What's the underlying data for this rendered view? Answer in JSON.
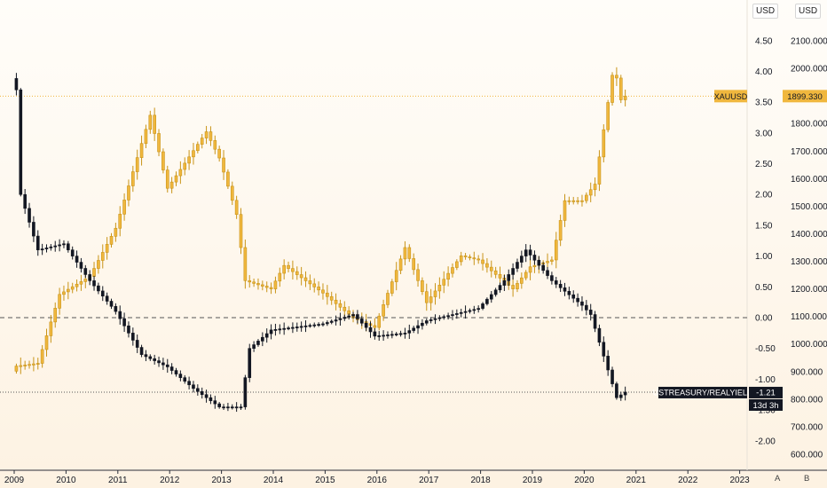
{
  "chart_data": {
    "type": "candlestick",
    "title": "",
    "x_axis": {
      "tick_labels": [
        "2009",
        "2010",
        "2011",
        "2012",
        "2013",
        "2014",
        "2015",
        "2016",
        "2017",
        "2018",
        "2019",
        "2020",
        "2021",
        "2022",
        "2023"
      ]
    },
    "left_price_scale": {
      "unit": "USD",
      "tick_labels": [
        "4.50",
        "4.00",
        "3.50",
        "3.00",
        "2.50",
        "2.00",
        "1.50",
        "1.00",
        "0.50",
        "0.00",
        "-0.50",
        "-1.00",
        "-1.50",
        "-2.00"
      ],
      "range": [
        -2.3,
        4.85
      ]
    },
    "right_price_scale": {
      "unit": "USD",
      "tick_labels": [
        "2100.000",
        "2000.000",
        "1900.000",
        "1800.000",
        "1700.000",
        "1600.000",
        "1500.000",
        "1400.000",
        "1300.000",
        "1200.000",
        "1100.000",
        "1000.000",
        "900.000",
        "800.000",
        "700.000",
        "600.000"
      ],
      "range": [
        550,
        2215
      ]
    },
    "series": [
      {
        "name": "XAUUSD",
        "color": "#f0b73e",
        "last_label": "1899.330",
        "monthly_close_anchors": [
          [
            "2009-01",
            920
          ],
          [
            "2009-06",
            930
          ],
          [
            "2009-11",
            1180
          ],
          [
            "2010-06",
            1245
          ],
          [
            "2010-12",
            1420
          ],
          [
            "2011-08",
            1830
          ],
          [
            "2011-12",
            1565
          ],
          [
            "2012-09",
            1770
          ],
          [
            "2012-12",
            1675
          ],
          [
            "2013-04",
            1470
          ],
          [
            "2013-06",
            1230
          ],
          [
            "2013-12",
            1200
          ],
          [
            "2014-03",
            1285
          ],
          [
            "2014-12",
            1185
          ],
          [
            "2015-07",
            1095
          ],
          [
            "2015-12",
            1060
          ],
          [
            "2016-07",
            1350
          ],
          [
            "2016-12",
            1150
          ],
          [
            "2017-08",
            1320
          ],
          [
            "2017-12",
            1305
          ],
          [
            "2018-08",
            1200
          ],
          [
            "2018-12",
            1280
          ],
          [
            "2019-05",
            1305
          ],
          [
            "2019-08",
            1520
          ],
          [
            "2019-12",
            1520
          ],
          [
            "2020-03",
            1580
          ],
          [
            "2020-07",
            1975
          ],
          [
            "2020-08",
            1965
          ],
          [
            "2020-09",
            1886
          ],
          [
            "2020-10",
            1899
          ]
        ]
      },
      {
        "name": "USTREASURY/REALYIELD",
        "color": "#131722",
        "last_label": "-1.21",
        "countdown": "13d 3h",
        "monthly_close_anchors": [
          [
            "2009-01",
            3.7
          ],
          [
            "2009-02",
            2.0
          ],
          [
            "2009-06",
            1.1
          ],
          [
            "2009-12",
            1.2
          ],
          [
            "2010-06",
            0.6
          ],
          [
            "2010-12",
            0.1
          ],
          [
            "2011-06",
            -0.6
          ],
          [
            "2011-12",
            -0.8
          ],
          [
            "2012-06",
            -1.15
          ],
          [
            "2012-12",
            -1.45
          ],
          [
            "2013-05",
            -1.45
          ],
          [
            "2013-07",
            -0.5
          ],
          [
            "2013-12",
            -0.2
          ],
          [
            "2014-12",
            -0.1
          ],
          [
            "2015-07",
            0.05
          ],
          [
            "2015-12",
            -0.3
          ],
          [
            "2016-07",
            -0.25
          ],
          [
            "2016-12",
            -0.05
          ],
          [
            "2017-12",
            0.15
          ],
          [
            "2018-06",
            0.6
          ],
          [
            "2018-11",
            1.1
          ],
          [
            "2019-05",
            0.6
          ],
          [
            "2019-12",
            0.2
          ],
          [
            "2020-02",
            0.05
          ],
          [
            "2020-04",
            -0.4
          ],
          [
            "2020-08",
            -1.3
          ],
          [
            "2020-10",
            -1.21
          ]
        ]
      }
    ],
    "horizontal_lines": [
      {
        "series": "XAUUSD",
        "value": 1899.33,
        "style": "dotted"
      },
      {
        "series": "USTREASURY/REALYIELD",
        "value": 0.0,
        "style": "dashed"
      },
      {
        "series": "USTREASURY/REALYIELD",
        "value": -1.21,
        "style": "dotted"
      }
    ],
    "axis_mode_labels": [
      "A",
      "B"
    ],
    "colors": {
      "gold": "#f0b73e",
      "yield": "#131722",
      "gold_line": "#f0b73e",
      "background_top": "#fffdf9",
      "background_bottom": "#fdf2e2"
    }
  }
}
